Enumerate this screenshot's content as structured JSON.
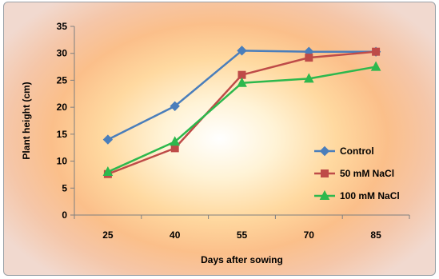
{
  "chart_data": {
    "type": "line",
    "title": "",
    "xlabel": "Days after sowing",
    "ylabel": "Plant height (cm)",
    "categories": [
      "25",
      "40",
      "55",
      "70",
      "85"
    ],
    "ylim": [
      0,
      35
    ],
    "yticks": [
      0,
      5,
      10,
      15,
      20,
      25,
      30,
      35
    ],
    "grid": false,
    "legend_position": "right",
    "series": [
      {
        "name": "Control",
        "values": [
          14.0,
          20.2,
          30.5,
          30.3,
          30.3
        ],
        "color": "#4a7ebb",
        "marker": "diamond"
      },
      {
        "name": "50 mM NaCl",
        "values": [
          7.6,
          12.4,
          26.0,
          29.2,
          30.3
        ],
        "color": "#be4b48",
        "marker": "square"
      },
      {
        "name": "100 mM NaCl",
        "values": [
          8.0,
          13.6,
          24.5,
          25.3,
          27.5
        ],
        "color": "#2db84d",
        "marker": "triangle"
      }
    ]
  }
}
